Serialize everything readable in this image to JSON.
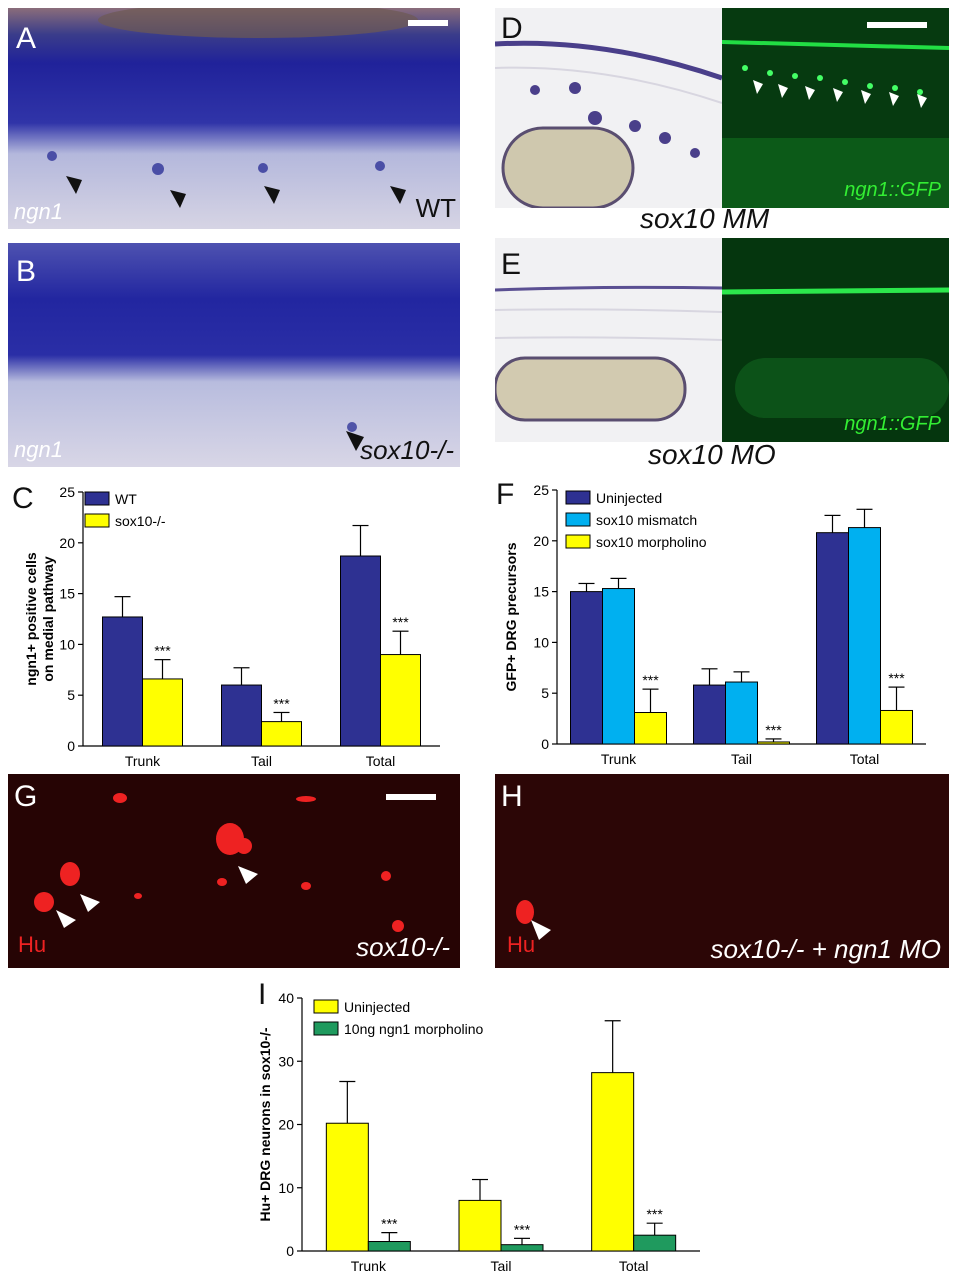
{
  "panels": {
    "A": {
      "letter": "A",
      "gene_label": "ngn1",
      "genotype_label": "WT"
    },
    "B": {
      "letter": "B",
      "gene_label": "ngn1",
      "genotype_label": "sox10-/-"
    },
    "D": {
      "letter": "D",
      "reporter_label": "ngn1::GFP",
      "caption": "sox10 MM"
    },
    "E": {
      "letter": "E",
      "reporter_label": "ngn1::GFP",
      "caption": "sox10 MO"
    },
    "G": {
      "letter": "G",
      "stain_label": "Hu",
      "genotype_label": "sox10-/-"
    },
    "H": {
      "letter": "H",
      "stain_label": "Hu",
      "genotype_label": "sox10-/- + ngn1 MO"
    }
  },
  "chart_data": [
    {
      "panel": "C",
      "type": "bar",
      "ylabel": "ngn1+ positive cells on medial pathway",
      "ylim": [
        0,
        25
      ],
      "yticks": [
        0,
        5,
        10,
        15,
        20,
        25
      ],
      "categories": [
        "Trunk",
        "Tail",
        "Total"
      ],
      "series": [
        {
          "name": "WT",
          "color": "#2e3192",
          "values": [
            12.7,
            6.0,
            18.7
          ],
          "errors": [
            2.0,
            1.7,
            3.0
          ]
        },
        {
          "name": "sox10-/-",
          "color": "#ffff00",
          "values": [
            6.6,
            2.4,
            9.0
          ],
          "errors": [
            1.9,
            0.9,
            2.3
          ]
        }
      ],
      "annotations": [
        "",
        "",
        "",
        "***",
        "***",
        "***"
      ],
      "legend": "top-left"
    },
    {
      "panel": "F",
      "type": "bar",
      "ylabel": "GFP+ DRG precursors",
      "ylim": [
        0,
        25
      ],
      "yticks": [
        0,
        5,
        10,
        15,
        20,
        25
      ],
      "categories": [
        "Trunk",
        "Tail",
        "Total"
      ],
      "series": [
        {
          "name": "Uninjected",
          "color": "#2e3192",
          "values": [
            15.0,
            5.8,
            20.8
          ],
          "errors": [
            0.8,
            1.6,
            1.7
          ]
        },
        {
          "name": "sox10 mismatch",
          "color": "#00b0f0",
          "values": [
            15.3,
            6.1,
            21.3
          ],
          "errors": [
            1.0,
            1.0,
            1.8
          ]
        },
        {
          "name": "sox10 morpholino",
          "color": "#ffff00",
          "values": [
            3.1,
            0.2,
            3.3
          ],
          "errors": [
            2.3,
            0.3,
            2.3
          ]
        }
      ],
      "annotations": [
        "",
        "",
        "",
        "",
        "",
        "",
        "***",
        "***",
        "***"
      ],
      "legend": "top-left"
    },
    {
      "panel": "I",
      "type": "bar",
      "ylabel": "Hu+ DRG neurons in sox10-/-",
      "ylim": [
        0,
        40
      ],
      "yticks": [
        0,
        10,
        20,
        30,
        40
      ],
      "categories": [
        "Trunk",
        "Tail",
        "Total"
      ],
      "series": [
        {
          "name": "Uninjected",
          "color": "#ffff00",
          "values": [
            20.2,
            8.0,
            28.2
          ],
          "errors": [
            6.6,
            3.3,
            8.2
          ]
        },
        {
          "name": "10ng ngn1 morpholino",
          "color": "#1f9a5e",
          "values": [
            1.5,
            1.0,
            2.5
          ],
          "errors": [
            1.4,
            1.0,
            1.9
          ]
        }
      ],
      "annotations": [
        "",
        "",
        "",
        "***",
        "***",
        "***"
      ],
      "legend": "top-left"
    }
  ]
}
